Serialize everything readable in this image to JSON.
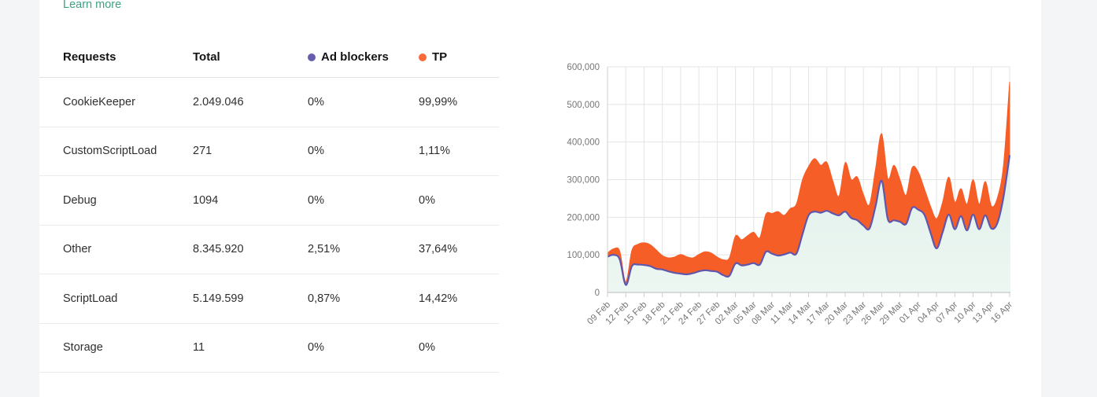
{
  "link": {
    "label": "Learn more"
  },
  "table": {
    "header": {
      "requests": "Requests",
      "total": "Total",
      "ad_blockers": "Ad blockers",
      "tp": "TP"
    },
    "rows": [
      {
        "name": "CookieKeeper",
        "total": "2.049.046",
        "ad_blockers": "0%",
        "tp": "99,99%"
      },
      {
        "name": "CustomScriptLoad",
        "total": "271",
        "ad_blockers": "0%",
        "tp": "1,11%"
      },
      {
        "name": "Debug",
        "total": "1094",
        "ad_blockers": "0%",
        "tp": "0%"
      },
      {
        "name": "Other",
        "total": "8.345.920",
        "ad_blockers": "2,51%",
        "tp": "37,64%"
      },
      {
        "name": "ScriptLoad",
        "total": "5.149.599",
        "ad_blockers": "0,87%",
        "tp": "14,42%"
      },
      {
        "name": "Storage",
        "total": "11",
        "ad_blockers": "0%",
        "tp": "0%"
      }
    ]
  },
  "colors": {
    "link": "#3ea183",
    "ad_blockers_dot": "#675dad",
    "tp_dot": "#f8683b",
    "ad_blockers_line": "#5f57ad",
    "tp_area": "#f65e27",
    "base_fill_top": "#e0efe9",
    "base_fill_bottom": "#edf7f2",
    "grid": "#e4e4e4",
    "axis_line": "#cfcfcf",
    "axis_text": "#767676"
  },
  "chart_data": {
    "type": "area",
    "title": "",
    "xlabel": "",
    "ylabel": "",
    "ylim": [
      0,
      600000
    ],
    "grid": true,
    "legend_position": "above-table",
    "y_tick_labels": [
      "0",
      "100,000",
      "200,000",
      "300,000",
      "400,000",
      "500,000",
      "600,000"
    ],
    "x_tick_labels": [
      "09 Feb",
      "12 Feb",
      "15 Feb",
      "18 Feb",
      "21 Feb",
      "24 Feb",
      "27 Feb",
      "02 Mar",
      "05 Mar",
      "08 Mar",
      "11 Mar",
      "14 Mar",
      "17 Mar",
      "20 Mar",
      "23 Mar",
      "26 Mar",
      "29 Mar",
      "01 Apr",
      "04 Apr",
      "07 Apr",
      "10 Apr",
      "13 Apr",
      "16 Apr"
    ],
    "x_tick_every_n_points": 3,
    "series": [
      {
        "name": "Ad blockers",
        "role": "lower-boundary-line",
        "values": [
          95000,
          100000,
          88000,
          20000,
          70000,
          74000,
          73000,
          70000,
          63000,
          61000,
          56000,
          52000,
          50000,
          48000,
          51000,
          56000,
          59000,
          57000,
          55000,
          46000,
          44000,
          77000,
          72000,
          74000,
          78000,
          74000,
          108000,
          103000,
          98000,
          101000,
          106000,
          103000,
          155000,
          205000,
          215000,
          212000,
          217000,
          210000,
          205000,
          215000,
          198000,
          192000,
          178000,
          170000,
          230000,
          297000,
          195000,
          192000,
          188000,
          182000,
          225000,
          220000,
          207000,
          160000,
          117000,
          160000,
          207000,
          168000,
          203000,
          165000,
          207000,
          168000,
          205000,
          170000,
          185000,
          255000,
          365000
        ]
      },
      {
        "name": "TP",
        "role": "upper-boundary-stacked-top",
        "values": [
          105000,
          116000,
          110000,
          28000,
          112000,
          128000,
          132000,
          127000,
          113000,
          98000,
          92000,
          94000,
          101000,
          95000,
          92000,
          101000,
          108000,
          105000,
          94000,
          87000,
          92000,
          150000,
          140000,
          151000,
          160000,
          146000,
          208000,
          210000,
          215000,
          205000,
          223000,
          235000,
          300000,
          335000,
          356000,
          338000,
          346000,
          295000,
          256000,
          345000,
          300000,
          307000,
          260000,
          234000,
          330000,
          422000,
          303000,
          338000,
          300000,
          259000,
          332000,
          320000,
          276000,
          230000,
          196000,
          240000,
          307000,
          240000,
          276000,
          235000,
          300000,
          235000,
          295000,
          230000,
          252000,
          340000,
          560000
        ]
      }
    ]
  }
}
